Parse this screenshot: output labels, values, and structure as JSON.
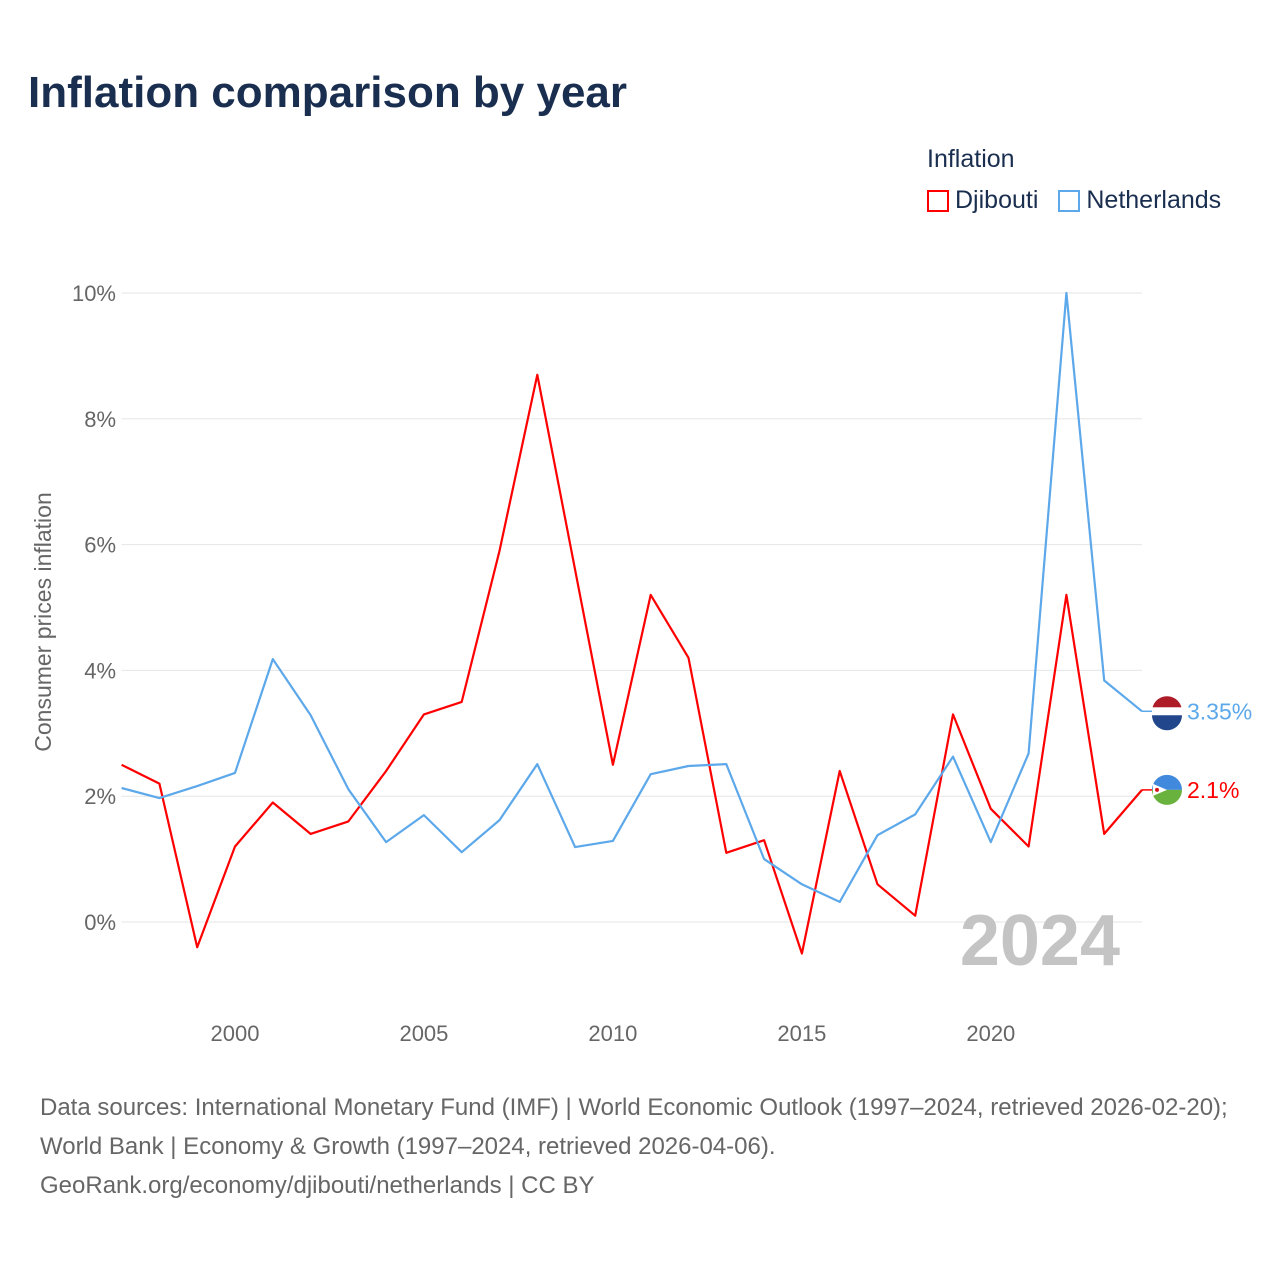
{
  "chart_data": {
    "type": "line",
    "title": "Inflation comparison by year",
    "legend_title": "Inflation",
    "legend_position": "top-right",
    "ylabel": "Consumer prices inflation",
    "xlabel": "",
    "ylim": [
      -1.2,
      10
    ],
    "xlim": [
      1997,
      2024
    ],
    "yticks": [
      0,
      2,
      4,
      6,
      8,
      10
    ],
    "ytick_labels": [
      "0%",
      "2%",
      "4%",
      "6%",
      "8%",
      "10%"
    ],
    "xticks": [
      2000,
      2005,
      2010,
      2015,
      2020
    ],
    "xtick_labels": [
      "2000",
      "2005",
      "2010",
      "2015",
      "2020"
    ],
    "grid": true,
    "year_watermark": "2024",
    "x": [
      1997,
      1998,
      1999,
      2000,
      2001,
      2002,
      2003,
      2004,
      2005,
      2006,
      2007,
      2008,
      2009,
      2010,
      2011,
      2012,
      2013,
      2014,
      2015,
      2016,
      2017,
      2018,
      2019,
      2020,
      2021,
      2022,
      2023,
      2024
    ],
    "series": [
      {
        "name": "Djibouti",
        "color": "#ff0000",
        "end_label": "2.1%",
        "values": [
          2.5,
          2.2,
          -0.4,
          1.2,
          1.9,
          1.4,
          1.6,
          2.4,
          3.3,
          3.5,
          5.9,
          8.7,
          5.6,
          2.5,
          5.2,
          4.2,
          1.1,
          1.3,
          -0.5,
          2.4,
          0.6,
          0.1,
          3.3,
          1.8,
          1.2,
          5.2,
          1.4,
          2.1
        ]
      },
      {
        "name": "Netherlands",
        "color": "#5ca8ea",
        "end_label": "3.35%",
        "values": [
          2.13,
          1.97,
          2.16,
          2.37,
          4.18,
          3.29,
          2.11,
          1.27,
          1.7,
          1.11,
          1.62,
          2.51,
          1.19,
          1.29,
          2.35,
          2.48,
          2.51,
          1.0,
          0.6,
          0.32,
          1.38,
          1.71,
          2.63,
          1.27,
          2.68,
          10.0,
          3.84,
          3.35
        ]
      }
    ]
  },
  "footer": {
    "sources": "Data sources: International Monetary Fund (IMF) | World Economic Outlook (1997–2024, retrieved 2026-02-20); World Bank | Economy & Growth (1997–2024, retrieved 2026-04-06).",
    "link": "GeoRank.org/economy/djibouti/netherlands | CC BY"
  }
}
